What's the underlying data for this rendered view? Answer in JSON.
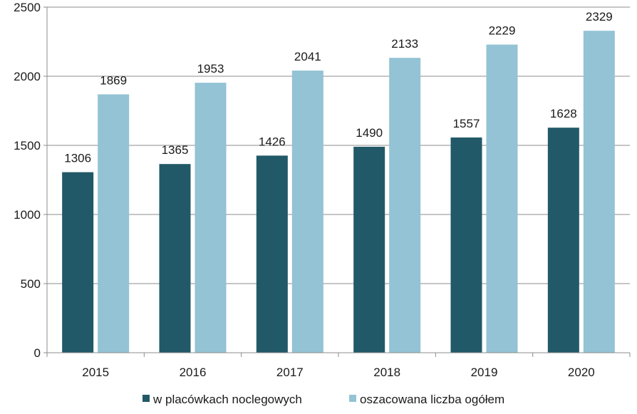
{
  "chart_data": {
    "type": "bar",
    "categories": [
      "2015",
      "2016",
      "2017",
      "2018",
      "2019",
      "2020"
    ],
    "series": [
      {
        "name": "w placówkach noclegowych",
        "color": "#215968",
        "values": [
          1306,
          1365,
          1426,
          1490,
          1557,
          1628
        ]
      },
      {
        "name": "oszacowana liczba ogółem",
        "color": "#93c3d5",
        "values": [
          1869,
          1953,
          2041,
          2133,
          2229,
          2329
        ]
      }
    ],
    "title": "",
    "xlabel": "",
    "ylabel": "",
    "ylim": [
      0,
      2500
    ],
    "yticks": [
      0,
      500,
      1000,
      1500,
      2000,
      2500
    ],
    "grid": true,
    "legend_position": "bottom",
    "data_labels": true
  }
}
